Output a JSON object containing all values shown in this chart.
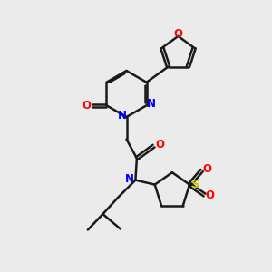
{
  "bg_color": "#ebebeb",
  "bond_color": "#1a1a1a",
  "n_color": "#0000ff",
  "o_color": "#ff0000",
  "s_color": "#cccc00",
  "bond_width": 1.8,
  "dbo": 0.055,
  "figsize": [
    3.0,
    3.0
  ],
  "dpi": 100,
  "xlim": [
    0,
    10
  ],
  "ylim": [
    0,
    10
  ]
}
